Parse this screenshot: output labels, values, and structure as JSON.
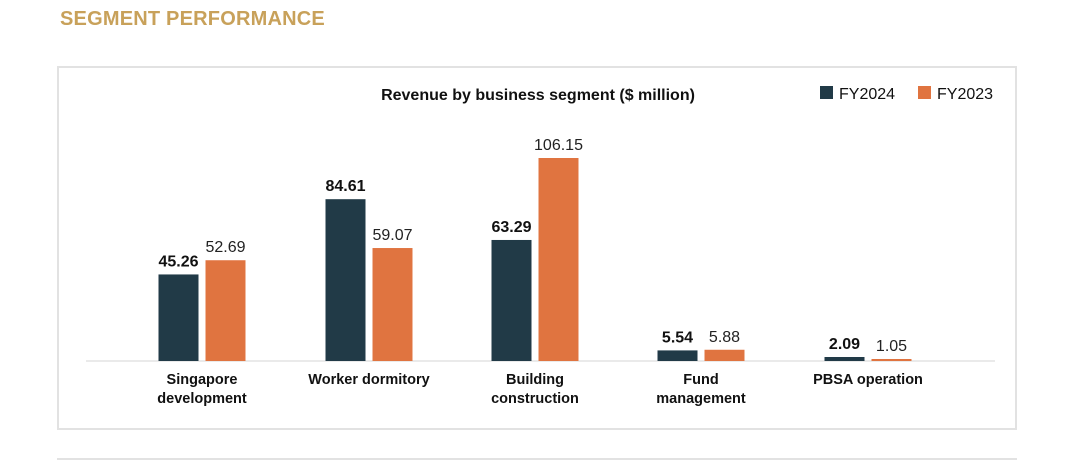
{
  "page": {
    "section_title": "SEGMENT PERFORMANCE"
  },
  "chart_data": {
    "type": "bar",
    "title": "Revenue by business segment ($ million)",
    "categories": [
      [
        "Singapore",
        "development"
      ],
      [
        "Worker dormitory"
      ],
      [
        "Building",
        "construction"
      ],
      [
        "Fund",
        "management"
      ],
      [
        "PBSA operation"
      ]
    ],
    "series": [
      {
        "name": "FY2024",
        "values": [
          45.26,
          84.61,
          63.29,
          5.54,
          2.09
        ],
        "labels": [
          "45.26",
          "84.61",
          "63.29",
          "5.54",
          "2.09"
        ],
        "color": "#213a47"
      },
      {
        "name": "FY2023",
        "values": [
          52.69,
          59.07,
          106.15,
          5.88,
          1.05
        ],
        "labels": [
          "52.69",
          "59.07",
          "106.15",
          "5.88",
          "1.05"
        ],
        "color": "#e07440"
      }
    ],
    "ylim": [
      0,
      110
    ],
    "grid": false,
    "legend": "top-right",
    "xlabel": "",
    "ylabel": ""
  }
}
